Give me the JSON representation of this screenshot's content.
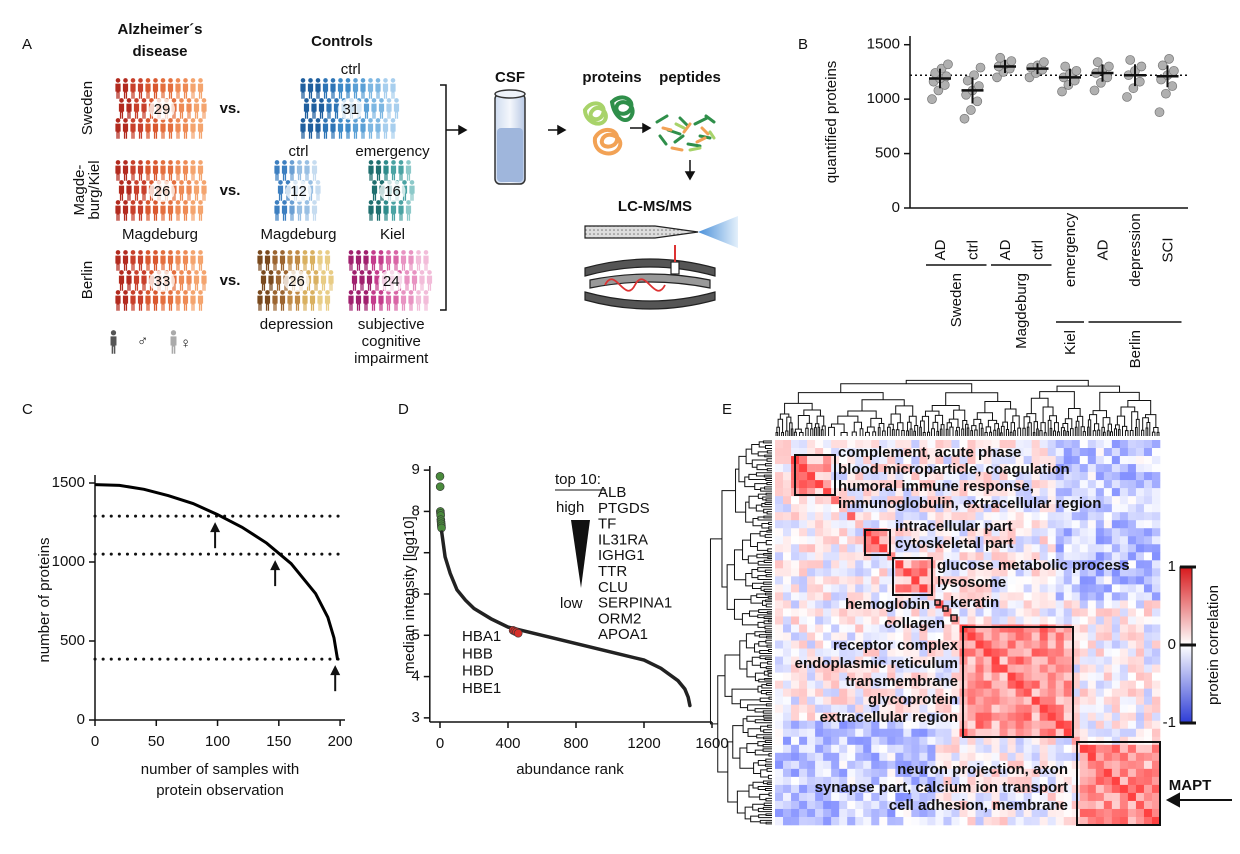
{
  "panel_labels": [
    "A",
    "B",
    "C",
    "D",
    "E"
  ],
  "panel_a": {
    "ad_title": [
      "Alzheimer´s",
      "disease"
    ],
    "controls_title": "Controls",
    "rows": [
      {
        "label": [
          "Sweden"
        ],
        "ad": 29,
        "vs": "vs.",
        "controls": [
          {
            "top": "ctrl",
            "n": 31
          }
        ]
      },
      {
        "label": [
          "Magde-",
          "burg/Kiel"
        ],
        "ad": 26,
        "ad_site": "Magdeburg",
        "vs": "vs.",
        "controls": [
          {
            "top": "ctrl",
            "n": 12,
            "bottom": [
              "Magdeburg"
            ]
          },
          {
            "top": "emergency",
            "n": 16,
            "bottom": [
              "Kiel"
            ]
          }
        ]
      },
      {
        "label": [
          "Berlin"
        ],
        "ad": 33,
        "vs": "vs.",
        "controls": [
          {
            "n": 26,
            "bottom": [
              "depression"
            ]
          },
          {
            "n": 24,
            "bottom": [
              "subjective",
              "cognitive",
              "impairment"
            ]
          }
        ]
      }
    ],
    "sex_symbols": [
      "♂",
      "♀"
    ],
    "csf": "CSF",
    "proteins": "proteins",
    "peptides": "peptides",
    "ms": "LC-MS/MS"
  },
  "chart_data": [
    {
      "type": "dot",
      "ylabel": "quantified proteins",
      "ylim": [
        0,
        1580
      ],
      "yticks": [
        0,
        500,
        1000,
        1500
      ],
      "reference": 1220,
      "point_color": "#b0b0b0",
      "groups": [
        {
          "name": "Sweden",
          "categories": [
            "AD",
            "ctrl"
          ],
          "medians": [
            1190,
            1080
          ],
          "sd": [
            90,
            120
          ],
          "points": [
            [
              1000,
              1080,
              1130,
              1160,
              1190,
              1210,
              1240,
              1280,
              1320
            ],
            [
              820,
              900,
              980,
              1040,
              1080,
              1120,
              1170,
              1220,
              1290
            ]
          ]
        },
        {
          "name": "Magdeburg",
          "categories": [
            "AD",
            "ctrl"
          ],
          "medians": [
            1300,
            1280
          ],
          "sd": [
            60,
            50
          ],
          "points": [
            [
              1200,
              1250,
              1280,
              1300,
              1320,
              1350,
              1380
            ],
            [
              1200,
              1240,
              1270,
              1290,
              1310,
              1340
            ]
          ]
        },
        {
          "name": "Kiel",
          "categories": [
            "emergency"
          ],
          "medians": [
            1200
          ],
          "sd": [
            80
          ],
          "points": [
            [
              1070,
              1130,
              1170,
              1200,
              1230,
              1260,
              1300
            ]
          ]
        },
        {
          "name": "Berlin",
          "categories": [
            "AD",
            "depression",
            "SCI"
          ],
          "medians": [
            1240,
            1220,
            1210
          ],
          "sd": [
            80,
            100,
            100
          ],
          "points": [
            [
              1080,
              1150,
              1200,
              1240,
              1270,
              1300,
              1340
            ],
            [
              1020,
              1100,
              1160,
              1220,
              1260,
              1300,
              1360
            ],
            [
              880,
              1050,
              1120,
              1180,
              1220,
              1260,
              1310,
              1370
            ]
          ]
        }
      ]
    },
    {
      "type": "line",
      "xlabel": [
        "number of samples with",
        "protein observation"
      ],
      "ylabel": "number of proteins",
      "x": [
        0,
        20,
        40,
        60,
        80,
        100,
        120,
        140,
        160,
        180,
        190,
        195,
        198
      ],
      "values": [
        1490,
        1485,
        1460,
        1420,
        1370,
        1300,
        1220,
        1120,
        990,
        800,
        650,
        520,
        380
      ],
      "color": "#000",
      "xlim": [
        0,
        204
      ],
      "ylim": [
        0,
        1500
      ],
      "xticks": [
        0,
        50,
        100,
        150,
        200
      ],
      "yticks": [
        0,
        500,
        1000,
        1500
      ],
      "reference_lines": [
        1290,
        1050,
        385
      ],
      "arrows_x": [
        98,
        147,
        196
      ]
    },
    {
      "type": "scatter",
      "xlabel": "abundance rank",
      "ylabel": "median intensity [log10]",
      "xlim": [
        -60,
        1600
      ],
      "ylim": [
        2.9,
        9.1
      ],
      "xticks": [
        0,
        400,
        800,
        1200,
        1600
      ],
      "yticks": [
        3,
        4,
        5,
        6,
        7,
        8,
        9
      ],
      "series": [
        {
          "color": "#4a8a3c",
          "x": [
            0,
            1,
            2,
            3,
            4,
            5,
            6,
            7,
            8,
            9
          ],
          "values": [
            8.85,
            8.6,
            8.0,
            7.95,
            7.9,
            7.8,
            7.75,
            7.7,
            7.65,
            7.6
          ]
        },
        {
          "color": "#222",
          "style": "line",
          "x": [
            10,
            30,
            60,
            100,
            150,
            200,
            300,
            400,
            500,
            600,
            800,
            1000,
            1200,
            1300,
            1400,
            1440,
            1460,
            1470
          ],
          "values": [
            7.5,
            6.9,
            6.5,
            6.1,
            5.85,
            5.65,
            5.4,
            5.2,
            5.1,
            5.0,
            4.8,
            4.6,
            4.4,
            4.2,
            3.9,
            3.7,
            3.5,
            3.3
          ]
        },
        {
          "color": "#d7302a",
          "x": [
            430,
            440,
            450,
            460
          ],
          "values": [
            5.12,
            5.1,
            5.08,
            5.05
          ]
        }
      ],
      "top_title": "top 10:",
      "high": "high",
      "low": "low",
      "top10": [
        "ALB",
        "PTGDS",
        "TF",
        "IL31RA",
        "IGHG1",
        "TTR",
        "CLU",
        "SERPINA1",
        "ORM2",
        "APOA1"
      ],
      "hemoglobins": [
        "HBA1",
        "HBB",
        "HBD",
        "HBE1"
      ]
    }
  ],
  "panel_e": {
    "clusters": [
      [
        "complement, acute phase",
        "blood microparticle, coagulation",
        "humoral immune response,",
        "immunoglobulin,  extracellular region"
      ],
      [
        "intracellular part",
        "cytoskeletal part"
      ],
      [
        "glucose metabolic process",
        "lysosome"
      ],
      [
        "hemoglobin"
      ],
      [
        "keratin"
      ],
      [
        "collagen"
      ],
      [
        "receptor complex",
        "endoplasmic reticulum",
        "transmembrane",
        "glycoprotein",
        "extracellular region"
      ],
      [
        "neuron projection, axon",
        "synapse part, calcium ion transport",
        "cell adhesion, membrane"
      ]
    ],
    "colorbar": {
      "clim": [
        -1,
        1
      ],
      "ticks": [
        1,
        0,
        -1
      ],
      "label": "protein correlation"
    },
    "arrow_label": "MAPT"
  }
}
